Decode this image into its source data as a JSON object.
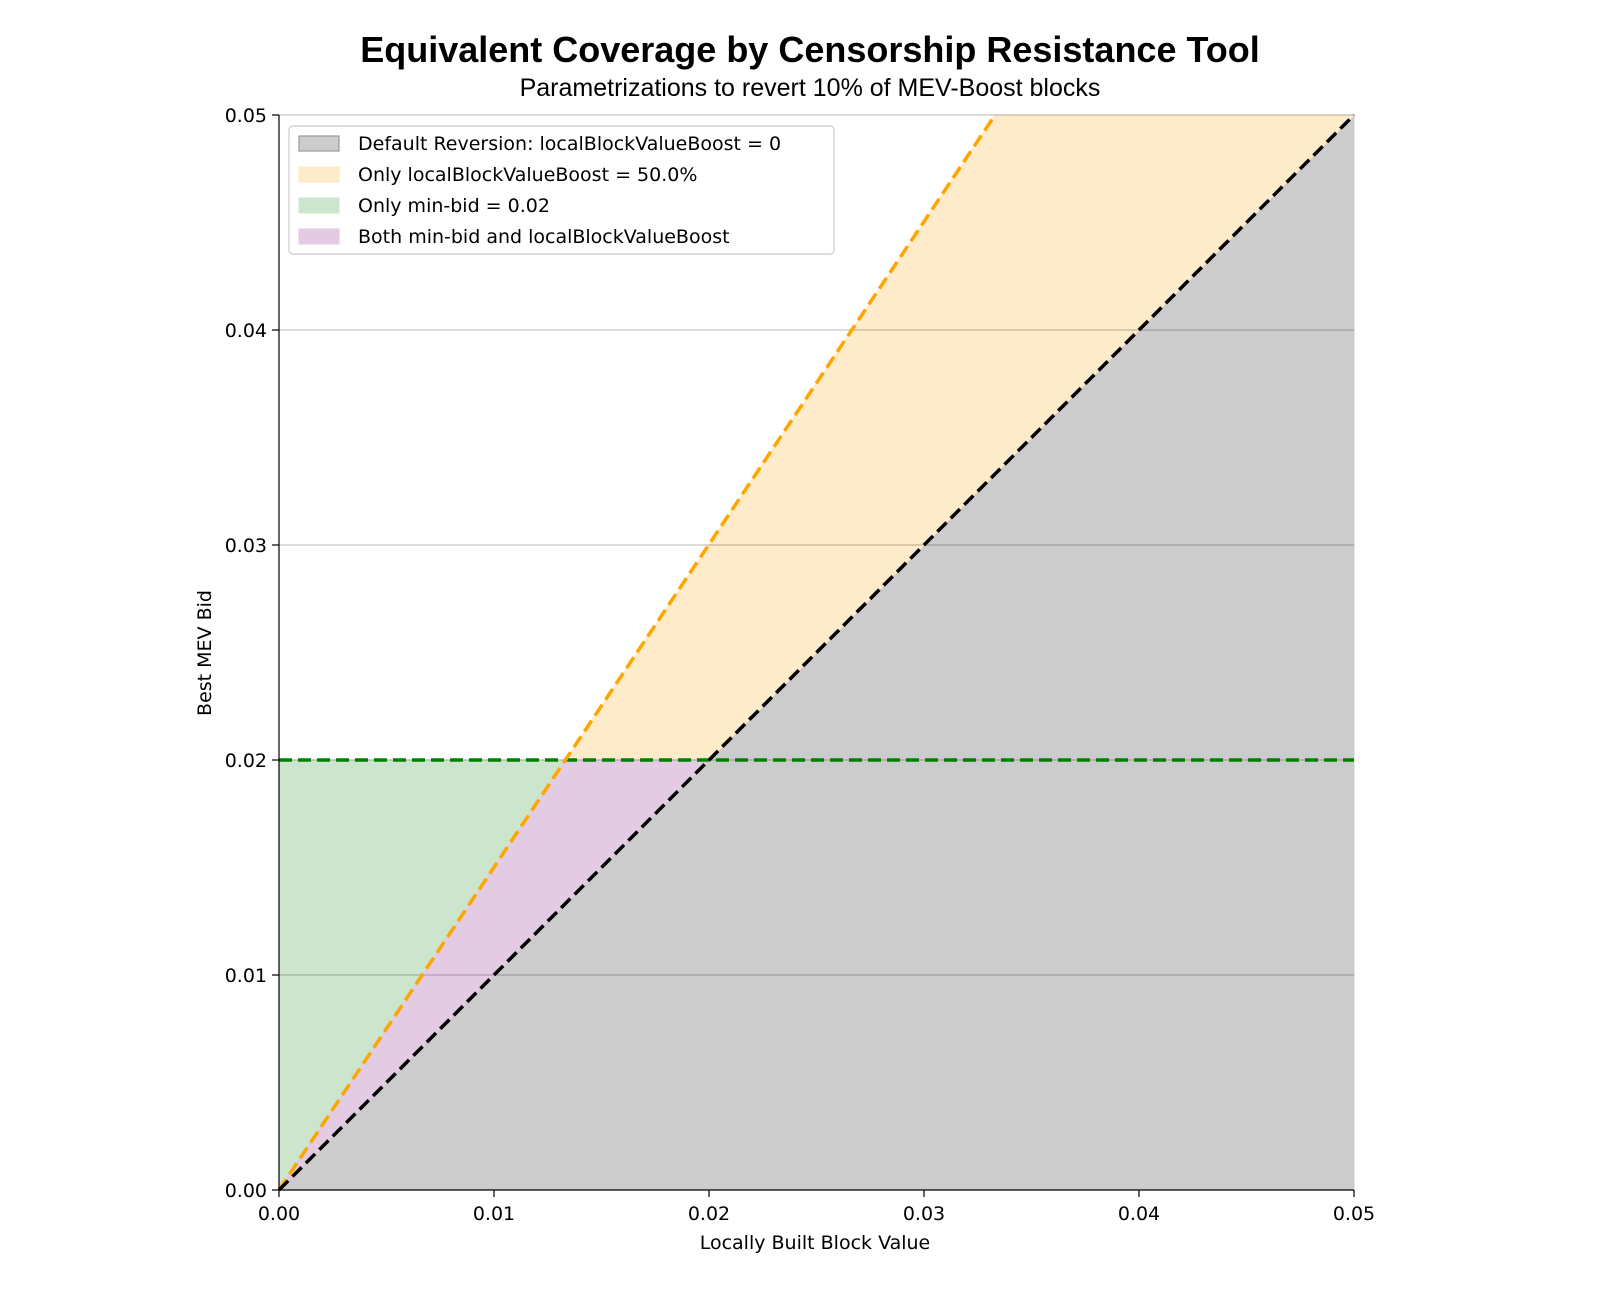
{
  "chart_data": {
    "type": "area",
    "title": "Equivalent Coverage by Censorship Resistance Tool",
    "subtitle": "Parametrizations to revert 10% of MEV-Boost blocks",
    "xlabel": "Locally Built Block Value",
    "ylabel": "Best MEV Bid",
    "xlim": [
      0,
      0.05
    ],
    "ylim": [
      0,
      0.05
    ],
    "xticks": [
      "0.00",
      "0.01",
      "0.02",
      "0.03",
      "0.04",
      "0.05"
    ],
    "yticks": [
      "0.00",
      "0.01",
      "0.02",
      "0.03",
      "0.04",
      "0.05"
    ],
    "grid": "horizontal",
    "legend_position": "top-left",
    "parameters": {
      "min_bid": 0.02,
      "local_block_value_boost": 0.5
    },
    "regions": [
      {
        "name": "Default Reversion: localBlockValueBoost = 0",
        "color": "#cccccc",
        "polygon": [
          [
            0,
            0
          ],
          [
            0.05,
            0.05
          ],
          [
            0.05,
            0
          ]
        ]
      },
      {
        "name": "Only localBlockValueBoost = 50.0%",
        "color": "#fdebc9",
        "polygon": [
          [
            0.01333,
            0.02
          ],
          [
            0.0333,
            0.05
          ],
          [
            0.05,
            0.05
          ],
          [
            0.02,
            0.02
          ]
        ]
      },
      {
        "name": "Only min-bid = 0.02",
        "color": "#cde5cc",
        "polygon": [
          [
            0,
            0
          ],
          [
            0,
            0.02
          ],
          [
            0.01333,
            0.02
          ]
        ]
      },
      {
        "name": "Both min-bid and localBlockValueBoost",
        "color": "#e3cbe3",
        "polygon": [
          [
            0,
            0
          ],
          [
            0.01333,
            0.02
          ],
          [
            0.02,
            0.02
          ]
        ]
      }
    ],
    "lines": [
      {
        "label": "y = x",
        "color": "#000000",
        "dash": "dashed",
        "points": [
          [
            0,
            0
          ],
          [
            0.05,
            0.05
          ]
        ]
      },
      {
        "label": "y = 1.5x",
        "color": "#ffa500",
        "dash": "dashed",
        "points": [
          [
            0,
            0
          ],
          [
            0.0333,
            0.05
          ]
        ]
      },
      {
        "label": "y = 0.02",
        "color": "#008000",
        "dash": "dashed",
        "points": [
          [
            0,
            0.02
          ],
          [
            0.05,
            0.02
          ]
        ]
      }
    ]
  }
}
